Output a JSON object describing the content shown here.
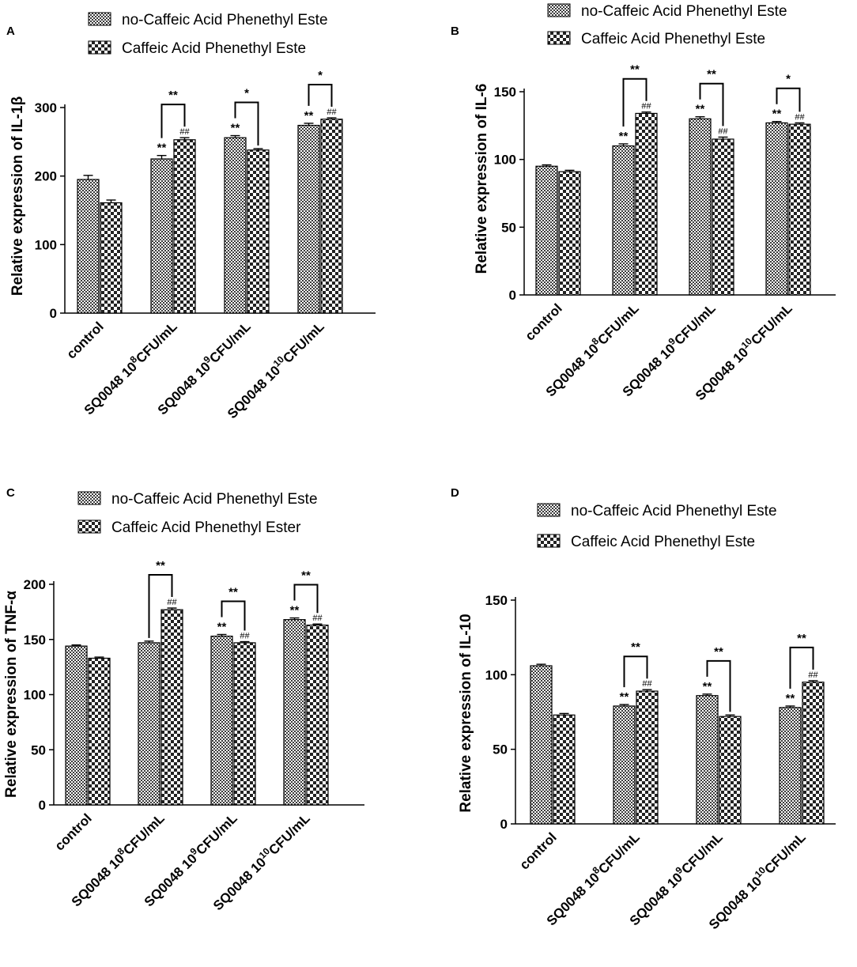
{
  "chart_data": [
    {
      "panel": "A",
      "type": "bar",
      "ylabel": "Relative expression of IL-1β",
      "ylim": [
        0,
        300
      ],
      "yticks": [
        0,
        100,
        200,
        300
      ],
      "categories": [
        "control",
        "SQ0048 10",
        "SQ0048 10",
        "SQ0048 10"
      ],
      "category_sup": [
        "",
        "8",
        "9",
        "10"
      ],
      "category_suffix": [
        "",
        "CFU/mL",
        "CFU/mL",
        "CFU/mL"
      ],
      "series": [
        {
          "name": "no-Caffeic Acid Phenethyl Este",
          "values": [
            195,
            225,
            256,
            274
          ],
          "errors": [
            6,
            5,
            3,
            3
          ]
        },
        {
          "name": "Caffeic Acid Phenethyl Este",
          "values": [
            161,
            253,
            238,
            283
          ],
          "errors": [
            4,
            3,
            2,
            2
          ]
        }
      ],
      "bar_labels": [
        [
          "",
          "",
          ""
        ],
        [
          "**",
          "##",
          "**"
        ],
        [
          "**",
          "",
          "*"
        ],
        [
          "**",
          "##",
          "*"
        ]
      ]
    },
    {
      "panel": "B",
      "type": "bar",
      "ylabel": "Relative expression of IL-6",
      "ylim": [
        0,
        150
      ],
      "yticks": [
        0,
        50,
        100,
        150
      ],
      "categories": [
        "control",
        "SQ0048 10",
        "SQ0048 10",
        "SQ0048 10"
      ],
      "category_sup": [
        "",
        "8",
        "9",
        "10"
      ],
      "category_suffix": [
        "",
        "CFU/mL",
        "CFU/mL",
        "CFU/mL"
      ],
      "series": [
        {
          "name": "no-Caffeic Acid Phenethyl Este",
          "values": [
            95,
            110,
            130,
            127
          ],
          "errors": [
            1,
            1.5,
            1.5,
            1
          ]
        },
        {
          "name": "Caffeic Acid Phenethyl Este",
          "values": [
            91,
            134,
            115,
            126
          ],
          "errors": [
            1,
            1,
            1.5,
            1
          ]
        }
      ],
      "bar_labels": [
        [
          "",
          "",
          ""
        ],
        [
          "**",
          "##",
          "**"
        ],
        [
          "**",
          "##",
          "**"
        ],
        [
          "**",
          "##",
          "*"
        ]
      ]
    },
    {
      "panel": "C",
      "type": "bar",
      "ylabel": "Relative expression of TNF-α",
      "ylim": [
        0,
        200
      ],
      "yticks": [
        0,
        50,
        100,
        150,
        200
      ],
      "categories": [
        "control",
        "SQ0048 10",
        "SQ0048 10",
        "SQ0048 10"
      ],
      "category_sup": [
        "",
        "8",
        "9",
        "10"
      ],
      "category_suffix": [
        "",
        "CFU/mL",
        "CFU/mL",
        "CFU/mL"
      ],
      "series": [
        {
          "name": "no-Caffeic Acid Phenethyl Este",
          "values": [
            144,
            147,
            153,
            168
          ],
          "errors": [
            1,
            1.5,
            1.5,
            1.5
          ]
        },
        {
          "name": "Caffeic Acid Phenethyl Ester",
          "values": [
            133,
            177,
            147,
            163
          ],
          "errors": [
            1,
            1.5,
            1,
            1
          ]
        }
      ],
      "bar_labels": [
        [
          "",
          "",
          ""
        ],
        [
          "",
          "##",
          "**"
        ],
        [
          "**",
          "##",
          "**"
        ],
        [
          "**",
          "##",
          "**"
        ]
      ]
    },
    {
      "panel": "D",
      "type": "bar",
      "ylabel": "Relative expression of IL-10",
      "ylim": [
        0,
        150
      ],
      "yticks": [
        0,
        50,
        100,
        150
      ],
      "categories": [
        "control",
        "SQ0048 10",
        "SQ0048 10",
        "SQ0048 10"
      ],
      "category_sup": [
        "",
        "8",
        "9",
        "10"
      ],
      "category_suffix": [
        "",
        "CFU/mL",
        "CFU/mL",
        "CFU/mL"
      ],
      "series": [
        {
          "name": "no-Caffeic Acid Phenethyl Este",
          "values": [
            106,
            79,
            86,
            78
          ],
          "errors": [
            1,
            1,
            1,
            1
          ]
        },
        {
          "name": "Caffeic Acid Phenethyl Este",
          "values": [
            73,
            89,
            72,
            95
          ],
          "errors": [
            1,
            1,
            1,
            1
          ]
        }
      ],
      "bar_labels": [
        [
          "",
          "",
          ""
        ],
        [
          "**",
          "##",
          "**"
        ],
        [
          "**",
          "",
          "**"
        ],
        [
          "**",
          "##",
          "**"
        ]
      ]
    }
  ]
}
